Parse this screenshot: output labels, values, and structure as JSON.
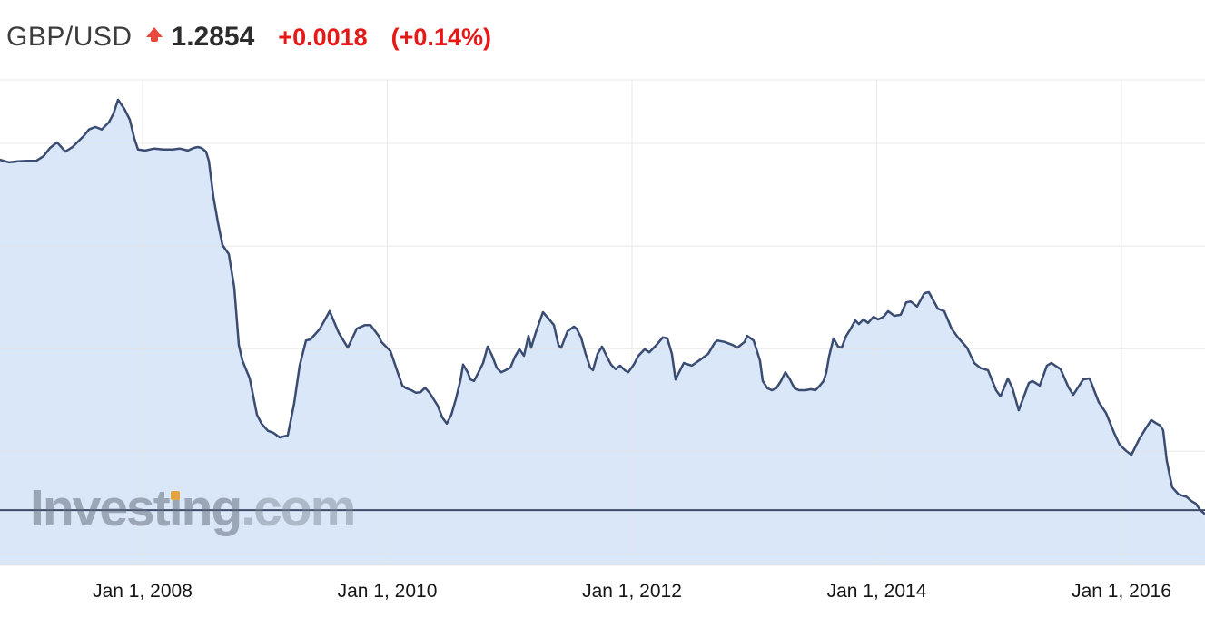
{
  "header": {
    "symbol": "GBP/USD",
    "price": "1.2854",
    "change": "+0.0018",
    "change_pct": "(+0.14%)",
    "arrow_icon": "up-arrow",
    "text_color": "#3d3d3d",
    "price_color": "#2c2c2c",
    "change_color": "#e61919",
    "arrow_color": "#e8493c"
  },
  "watermark": {
    "part1": "Invest",
    "dotless_i": "ı",
    "part2": "ng",
    "suffix": ".com",
    "i_dot_color": "#e2a43c"
  },
  "chart_data": {
    "type": "area",
    "title": "GBP/USD exchange rate history",
    "xlabel": "",
    "ylabel": "",
    "legend": "none",
    "grid": true,
    "line_color": "#3a4c71",
    "fill_color": "#d9e7f8",
    "grid_color": "#e4e4e4",
    "last_price_line_color": "#3c4a66",
    "last_price": 1.2854,
    "x_domain": [
      2006.835,
      2016.683
    ],
    "y_domain": [
      1.1777,
      2.1238
    ],
    "y_gridlines": [
      2.0,
      1.8,
      1.6,
      1.4,
      1.2
    ],
    "x_ticks": [
      {
        "year": 2008,
        "label": "Jan 1, 2008"
      },
      {
        "year": 2010,
        "label": "Jan 1, 2010"
      },
      {
        "year": 2012,
        "label": "Jan 1, 2012"
      },
      {
        "year": 2014,
        "label": "Jan 1, 2014"
      },
      {
        "year": 2016,
        "label": "Jan 1, 2016"
      }
    ],
    "x": [
      2006.835,
      2006.909,
      2006.983,
      2007.057,
      2007.132,
      2007.191,
      2007.243,
      2007.302,
      2007.369,
      2007.428,
      2007.488,
      2007.518,
      2007.562,
      2007.614,
      2007.666,
      2007.725,
      2007.763,
      2007.8,
      2007.852,
      2007.896,
      2007.933,
      2007.963,
      2008.022,
      2008.096,
      2008.171,
      2008.245,
      2008.304,
      2008.371,
      2008.416,
      2008.453,
      2008.482,
      2008.519,
      2008.542,
      2008.579,
      2008.616,
      2008.653,
      2008.705,
      2008.75,
      2008.787,
      2008.816,
      2008.876,
      2008.935,
      2008.972,
      2009.024,
      2009.069,
      2009.121,
      2009.187,
      2009.239,
      2009.284,
      2009.336,
      2009.373,
      2009.447,
      2009.492,
      2009.529,
      2009.603,
      2009.677,
      2009.751,
      2009.818,
      2009.863,
      2009.93,
      2009.952,
      2009.989,
      2010.026,
      2010.063,
      2010.085,
      2010.123,
      2010.152,
      2010.197,
      2010.234,
      2010.271,
      2010.308,
      2010.345,
      2010.412,
      2010.449,
      2010.486,
      2010.523,
      2010.56,
      2010.597,
      2010.62,
      2010.657,
      2010.679,
      2010.709,
      2010.746,
      2010.783,
      2010.82,
      2010.857,
      2010.894,
      2010.931,
      2010.968,
      2011.006,
      2011.043,
      2011.08,
      2011.117,
      2011.154,
      2011.176,
      2011.213,
      2011.272,
      2011.324,
      2011.362,
      2011.399,
      2011.421,
      2011.473,
      2011.525,
      2011.547,
      2011.584,
      2011.621,
      2011.658,
      2011.681,
      2011.718,
      2011.755,
      2011.792,
      2011.829,
      2011.866,
      2011.903,
      2011.94,
      2011.97,
      2012.015,
      2012.052,
      2012.104,
      2012.141,
      2012.2,
      2012.252,
      2012.289,
      2012.326,
      2012.356,
      2012.423,
      2012.489,
      2012.549,
      2012.623,
      2012.675,
      2012.697,
      2012.757,
      2012.823,
      2012.861,
      2012.92,
      2012.942,
      2012.994,
      2013.046,
      2013.069,
      2013.106,
      2013.143,
      2013.18,
      2013.217,
      2013.254,
      2013.291,
      2013.328,
      2013.365,
      2013.417,
      2013.462,
      2013.499,
      2013.536,
      2013.566,
      2013.588,
      2013.61,
      2013.647,
      2013.684,
      2013.714,
      2013.751,
      2013.788,
      2013.825,
      2013.855,
      2013.892,
      2013.929,
      2013.974,
      2014.011,
      2014.055,
      2014.093,
      2014.144,
      2014.196,
      2014.241,
      2014.278,
      2014.33,
      2014.389,
      2014.426,
      2014.5,
      2014.552,
      2014.612,
      2014.664,
      2014.738,
      2014.797,
      2014.849,
      2014.909,
      2014.975,
      2015.012,
      2015.072,
      2015.109,
      2015.161,
      2015.243,
      2015.272,
      2015.332,
      2015.391,
      2015.428,
      2015.502,
      2015.569,
      2015.606,
      2015.688,
      2015.74,
      2015.814,
      2015.873,
      2015.94,
      2015.985,
      2016.037,
      2016.081,
      2016.148,
      2016.2,
      2016.244,
      2016.281,
      2016.318,
      2016.341,
      2016.37,
      2016.393,
      2016.415,
      2016.467,
      2016.533,
      2016.571,
      2016.608,
      2016.645,
      2016.682
    ],
    "values": [
      1.968,
      1.963,
      1.965,
      1.966,
      1.966,
      1.975,
      1.991,
      2.002,
      1.984,
      1.993,
      2.007,
      2.014,
      2.027,
      2.032,
      2.027,
      2.041,
      2.058,
      2.085,
      2.067,
      2.046,
      2.009,
      1.988,
      1.986,
      1.99,
      1.988,
      1.988,
      1.99,
      1.986,
      1.991,
      1.993,
      1.991,
      1.984,
      1.966,
      1.896,
      1.846,
      1.802,
      1.784,
      1.719,
      1.607,
      1.577,
      1.542,
      1.471,
      1.454,
      1.44,
      1.436,
      1.427,
      1.431,
      1.493,
      1.567,
      1.616,
      1.618,
      1.638,
      1.657,
      1.673,
      1.631,
      1.602,
      1.639,
      1.646,
      1.646,
      1.625,
      1.613,
      1.604,
      1.595,
      1.569,
      1.554,
      1.528,
      1.523,
      1.519,
      1.514,
      1.515,
      1.524,
      1.514,
      1.489,
      1.466,
      1.454,
      1.471,
      1.501,
      1.537,
      1.569,
      1.554,
      1.54,
      1.537,
      1.554,
      1.572,
      1.604,
      1.586,
      1.563,
      1.554,
      1.558,
      1.563,
      1.584,
      1.599,
      1.586,
      1.625,
      1.602,
      1.631,
      1.671,
      1.657,
      1.646,
      1.607,
      1.602,
      1.634,
      1.643,
      1.639,
      1.622,
      1.59,
      1.563,
      1.558,
      1.59,
      1.604,
      1.586,
      1.569,
      1.56,
      1.567,
      1.558,
      1.554,
      1.569,
      1.586,
      1.599,
      1.593,
      1.607,
      1.622,
      1.62,
      1.59,
      1.54,
      1.572,
      1.567,
      1.577,
      1.59,
      1.611,
      1.616,
      1.613,
      1.607,
      1.602,
      1.613,
      1.625,
      1.616,
      1.577,
      1.537,
      1.523,
      1.519,
      1.523,
      1.537,
      1.554,
      1.54,
      1.523,
      1.519,
      1.519,
      1.521,
      1.519,
      1.528,
      1.537,
      1.554,
      1.584,
      1.62,
      1.604,
      1.602,
      1.625,
      1.639,
      1.655,
      1.648,
      1.657,
      1.65,
      1.662,
      1.657,
      1.662,
      1.673,
      1.664,
      1.666,
      1.69,
      1.692,
      1.682,
      1.708,
      1.71,
      1.678,
      1.673,
      1.639,
      1.622,
      1.602,
      1.572,
      1.562,
      1.558,
      1.519,
      1.507,
      1.542,
      1.523,
      1.48,
      1.533,
      1.537,
      1.528,
      1.567,
      1.572,
      1.56,
      1.524,
      1.51,
      1.54,
      1.542,
      1.496,
      1.475,
      1.436,
      1.413,
      1.401,
      1.393,
      1.425,
      1.445,
      1.461,
      1.455,
      1.45,
      1.441,
      1.383,
      1.355,
      1.33,
      1.316,
      1.311,
      1.303,
      1.298,
      1.285,
      1.278
    ]
  }
}
